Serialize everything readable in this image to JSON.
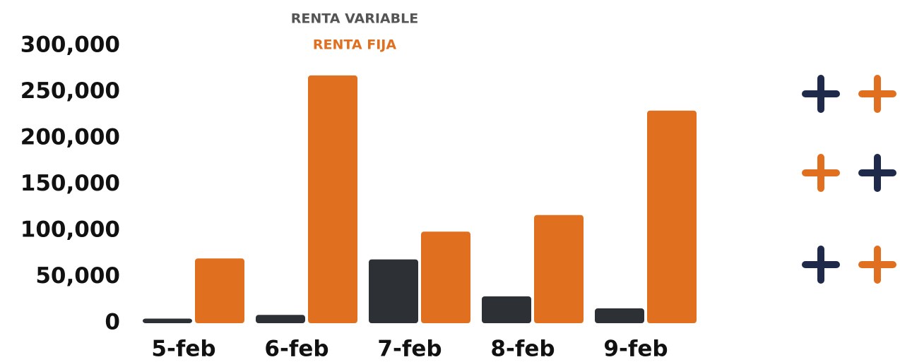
{
  "chart_data": {
    "type": "bar",
    "categories": [
      "5-feb",
      "6-feb",
      "7-feb",
      "8-feb",
      "9-feb"
    ],
    "series": [
      {
        "name": "RENTA VARIABLE",
        "color": "#2d3136",
        "values": [
          5000,
          9000,
          69000,
          29000,
          16000
        ]
      },
      {
        "name": "RENTA FIJA",
        "color": "#e07020",
        "values": [
          70000,
          268000,
          99000,
          117000,
          230000
        ]
      }
    ],
    "ylim": [
      0,
      300000
    ],
    "yticks": [
      0,
      {
        "value": 50000,
        "label": "50,000"
      },
      {
        "value": 100000,
        "label": "100,000"
      },
      {
        "value": 150000,
        "label": "150,000"
      },
      {
        "value": 200000,
        "label": "200,000"
      },
      {
        "value": 250000,
        "label": "250,000"
      },
      {
        "value": 300000,
        "label": "300,000"
      }
    ],
    "grid": false
  }
}
